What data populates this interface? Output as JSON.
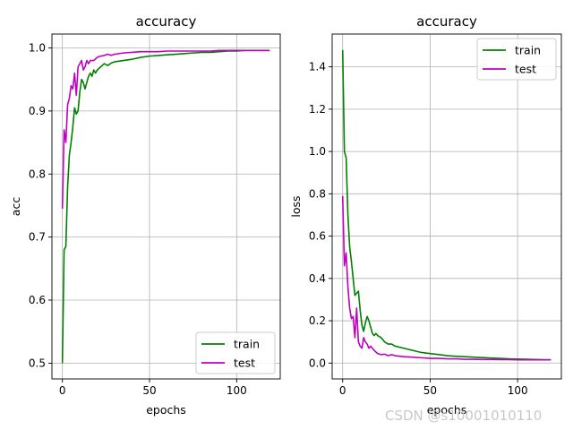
{
  "watermark": "CSDN @s10001010110",
  "chart_data": [
    {
      "type": "line",
      "title": "accuracy",
      "xlabel": "epochs",
      "ylabel": "acc",
      "xlim": [
        -6,
        125
      ],
      "ylim": [
        0.475,
        1.022
      ],
      "xticks": [
        0,
        50,
        100
      ],
      "xtick_labels": [
        "0",
        "50",
        "100"
      ],
      "yticks": [
        0.5,
        0.6,
        0.7,
        0.8,
        0.9,
        1.0
      ],
      "ytick_labels": [
        "0.5",
        "0.6",
        "0.7",
        "0.8",
        "0.9",
        "1.0"
      ],
      "grid": true,
      "legend_position": "lower-right",
      "series": [
        {
          "name": "train",
          "color": "#008000",
          "x": [
            0,
            1,
            2,
            3,
            4,
            5,
            6,
            7,
            8,
            9,
            10,
            11,
            12,
            13,
            14,
            15,
            16,
            17,
            18,
            19,
            20,
            22,
            24,
            26,
            28,
            30,
            35,
            40,
            45,
            50,
            55,
            60,
            65,
            70,
            75,
            80,
            85,
            90,
            95,
            100,
            105,
            110,
            115,
            119
          ],
          "values": [
            0.5,
            0.68,
            0.685,
            0.78,
            0.83,
            0.85,
            0.875,
            0.905,
            0.895,
            0.9,
            0.93,
            0.95,
            0.945,
            0.935,
            0.945,
            0.955,
            0.96,
            0.955,
            0.965,
            0.96,
            0.965,
            0.97,
            0.975,
            0.972,
            0.976,
            0.978,
            0.98,
            0.982,
            0.985,
            0.987,
            0.988,
            0.989,
            0.99,
            0.991,
            0.992,
            0.993,
            0.993,
            0.994,
            0.995,
            0.995,
            0.996,
            0.996,
            0.996,
            0.996
          ]
        },
        {
          "name": "test",
          "color": "#bf00bf",
          "x": [
            0,
            1,
            2,
            3,
            4,
            5,
            6,
            7,
            8,
            9,
            10,
            11,
            12,
            13,
            14,
            15,
            16,
            18,
            20,
            22,
            24,
            26,
            28,
            30,
            35,
            40,
            45,
            50,
            55,
            60,
            65,
            70,
            75,
            80,
            85,
            90,
            95,
            100,
            105,
            110,
            115,
            119
          ],
          "values": [
            0.745,
            0.87,
            0.85,
            0.91,
            0.92,
            0.94,
            0.935,
            0.96,
            0.925,
            0.97,
            0.975,
            0.98,
            0.965,
            0.97,
            0.98,
            0.975,
            0.98,
            0.98,
            0.985,
            0.987,
            0.988,
            0.99,
            0.988,
            0.99,
            0.992,
            0.993,
            0.994,
            0.994,
            0.994,
            0.995,
            0.995,
            0.995,
            0.995,
            0.995,
            0.995,
            0.996,
            0.996,
            0.996,
            0.996,
            0.996,
            0.996,
            0.996
          ]
        }
      ]
    },
    {
      "type": "line",
      "title": "accuracy",
      "xlabel": "epochs",
      "ylabel": "loss",
      "xlim": [
        -6,
        125
      ],
      "ylim": [
        -0.075,
        1.555
      ],
      "xticks": [
        0,
        50,
        100
      ],
      "xtick_labels": [
        "0",
        "50",
        "100"
      ],
      "yticks": [
        0.0,
        0.2,
        0.4,
        0.6,
        0.8,
        1.0,
        1.2,
        1.4
      ],
      "ytick_labels": [
        "0.0",
        "0.2",
        "0.4",
        "0.6",
        "0.8",
        "1.0",
        "1.2",
        "1.4"
      ],
      "grid": true,
      "legend_position": "upper-right",
      "series": [
        {
          "name": "train",
          "color": "#008000",
          "x": [
            0,
            1,
            2,
            3,
            4,
            5,
            6,
            7,
            8,
            9,
            10,
            11,
            12,
            13,
            14,
            15,
            16,
            17,
            18,
            19,
            20,
            22,
            24,
            26,
            28,
            30,
            35,
            40,
            45,
            50,
            55,
            60,
            65,
            70,
            75,
            80,
            85,
            90,
            95,
            100,
            105,
            110,
            115,
            119
          ],
          "values": [
            1.48,
            1.0,
            0.97,
            0.7,
            0.55,
            0.48,
            0.4,
            0.32,
            0.33,
            0.34,
            0.25,
            0.18,
            0.15,
            0.19,
            0.22,
            0.2,
            0.17,
            0.14,
            0.13,
            0.14,
            0.13,
            0.12,
            0.1,
            0.09,
            0.09,
            0.08,
            0.07,
            0.06,
            0.05,
            0.045,
            0.04,
            0.035,
            0.032,
            0.03,
            0.028,
            0.026,
            0.024,
            0.022,
            0.02,
            0.019,
            0.018,
            0.017,
            0.016,
            0.016
          ]
        },
        {
          "name": "test",
          "color": "#bf00bf",
          "x": [
            0,
            1,
            2,
            3,
            4,
            5,
            6,
            7,
            8,
            9,
            10,
            11,
            12,
            13,
            14,
            15,
            16,
            18,
            20,
            22,
            24,
            26,
            28,
            30,
            35,
            40,
            45,
            50,
            55,
            60,
            65,
            70,
            75,
            80,
            85,
            90,
            95,
            100,
            105,
            110,
            115,
            119
          ],
          "values": [
            0.79,
            0.46,
            0.52,
            0.36,
            0.26,
            0.21,
            0.22,
            0.12,
            0.26,
            0.1,
            0.08,
            0.07,
            0.12,
            0.1,
            0.09,
            0.07,
            0.08,
            0.06,
            0.045,
            0.04,
            0.042,
            0.035,
            0.04,
            0.035,
            0.03,
            0.028,
            0.025,
            0.022,
            0.022,
            0.02,
            0.02,
            0.018,
            0.018,
            0.017,
            0.017,
            0.016,
            0.016,
            0.015,
            0.015,
            0.015,
            0.015,
            0.015
          ]
        }
      ]
    }
  ]
}
